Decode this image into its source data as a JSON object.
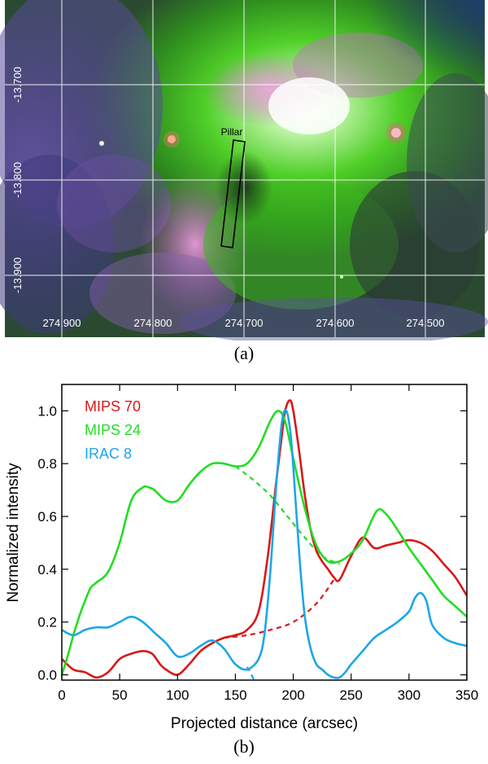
{
  "captions": {
    "a": "(a)",
    "b": "(b)"
  },
  "image_panel": {
    "ra_ticks": [
      "274.900",
      "274.800",
      "274.700",
      "274.600",
      "274.500"
    ],
    "dec_ticks": [
      "-13.700",
      "-13.800",
      "-13.900"
    ],
    "region_label": "Pillar"
  },
  "chart_data": {
    "type": "line",
    "xlabel": "Projected distance (arcsec)",
    "ylabel": "Normalized intensity",
    "xlim": [
      0,
      350
    ],
    "ylim": [
      -0.02,
      1.1
    ],
    "x_ticks": [
      0,
      50,
      100,
      150,
      200,
      250,
      300,
      350
    ],
    "y_ticks": [
      0.0,
      0.2,
      0.4,
      0.6,
      0.8,
      1.0
    ],
    "y_tick_labels": [
      "0.0",
      "0.2",
      "0.4",
      "0.6",
      "0.8",
      "1.0"
    ],
    "legend_position": "top-left",
    "series": [
      {
        "name": "MIPS 70",
        "color": "#d81818",
        "x": [
          0,
          10,
          20,
          30,
          40,
          50,
          60,
          70,
          78,
          85,
          90,
          100,
          110,
          120,
          130,
          140,
          150,
          160,
          170,
          178,
          185,
          190,
          193,
          197,
          200,
          205,
          210,
          215,
          220,
          225,
          230,
          235,
          240,
          250,
          260,
          270,
          280,
          290,
          300,
          310,
          320,
          330,
          340,
          350
        ],
        "y": [
          0.06,
          0.02,
          0.01,
          -0.01,
          0.01,
          0.06,
          0.08,
          0.09,
          0.08,
          0.04,
          0.02,
          0.0,
          0.04,
          0.09,
          0.12,
          0.14,
          0.15,
          0.17,
          0.24,
          0.45,
          0.72,
          0.9,
          1.0,
          1.04,
          1.0,
          0.85,
          0.68,
          0.55,
          0.47,
          0.43,
          0.4,
          0.37,
          0.36,
          0.45,
          0.52,
          0.48,
          0.49,
          0.5,
          0.51,
          0.5,
          0.47,
          0.42,
          0.37,
          0.3
        ]
      },
      {
        "name": "MIPS 24",
        "color": "#22dd22",
        "x": [
          0,
          5,
          10,
          15,
          20,
          25,
          30,
          40,
          50,
          60,
          70,
          75,
          80,
          90,
          100,
          110,
          120,
          130,
          140,
          150,
          160,
          170,
          180,
          187,
          193,
          200,
          210,
          220,
          230,
          240,
          250,
          260,
          272,
          280,
          290,
          300,
          310,
          320,
          330,
          340,
          350
        ],
        "y": [
          0.0,
          0.07,
          0.15,
          0.22,
          0.28,
          0.33,
          0.35,
          0.39,
          0.5,
          0.66,
          0.71,
          0.71,
          0.7,
          0.66,
          0.66,
          0.72,
          0.77,
          0.8,
          0.8,
          0.79,
          0.8,
          0.86,
          0.96,
          1.0,
          0.96,
          0.82,
          0.63,
          0.49,
          0.43,
          0.43,
          0.46,
          0.51,
          0.62,
          0.61,
          0.55,
          0.48,
          0.42,
          0.36,
          0.3,
          0.26,
          0.22
        ]
      },
      {
        "name": "IRAC 8",
        "color": "#1ca7e8",
        "x": [
          0,
          10,
          20,
          30,
          40,
          50,
          60,
          70,
          80,
          90,
          100,
          110,
          120,
          130,
          140,
          150,
          160,
          170,
          175,
          180,
          185,
          190,
          194,
          198,
          202,
          206,
          210,
          215,
          220,
          225,
          230,
          235,
          240,
          245,
          250,
          260,
          270,
          280,
          290,
          300,
          305,
          310,
          315,
          320,
          330,
          340,
          350
        ],
        "y": [
          0.17,
          0.15,
          0.17,
          0.18,
          0.18,
          0.2,
          0.22,
          0.2,
          0.16,
          0.12,
          0.07,
          0.08,
          0.11,
          0.13,
          0.1,
          0.04,
          0.02,
          0.06,
          0.15,
          0.38,
          0.7,
          0.95,
          1.0,
          0.9,
          0.66,
          0.41,
          0.22,
          0.1,
          0.04,
          0.02,
          0.0,
          -0.01,
          -0.01,
          0.01,
          0.04,
          0.09,
          0.14,
          0.17,
          0.2,
          0.24,
          0.29,
          0.31,
          0.28,
          0.19,
          0.14,
          0.12,
          0.11
        ]
      }
    ],
    "dashed_interpolations": [
      {
        "color": "#22dd22",
        "x": [
          150,
          165,
          180,
          195,
          210,
          225,
          240
        ],
        "y": [
          0.79,
          0.74,
          0.68,
          0.6,
          0.52,
          0.45,
          0.42
        ]
      },
      {
        "color": "#d81818",
        "x": [
          140,
          160,
          180,
          200,
          220,
          235
        ],
        "y": [
          0.14,
          0.15,
          0.17,
          0.2,
          0.27,
          0.36
        ]
      },
      {
        "color": "#1ca7e8",
        "x": [
          160,
          163,
          166
        ],
        "y": [
          0.03,
          0.01,
          -0.02
        ]
      }
    ]
  }
}
